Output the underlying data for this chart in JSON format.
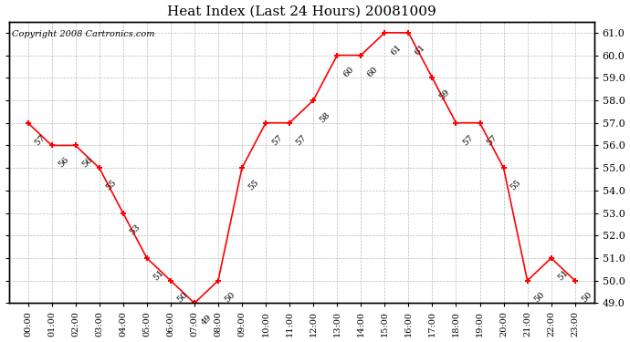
{
  "title": "Heat Index (Last 24 Hours) 20081009",
  "copyright": "Copyright 2008 Cartronics.com",
  "times": [
    "00:00",
    "01:00",
    "02:00",
    "03:00",
    "04:00",
    "05:00",
    "06:00",
    "07:00",
    "08:00",
    "09:00",
    "10:00",
    "11:00",
    "12:00",
    "13:00",
    "14:00",
    "15:00",
    "16:00",
    "17:00",
    "18:00",
    "19:00",
    "20:00",
    "21:00",
    "22:00",
    "23:00"
  ],
  "values": [
    57,
    56,
    56,
    55,
    53,
    51,
    50,
    49,
    50,
    55,
    57,
    57,
    58,
    60,
    60,
    61,
    61,
    59,
    57,
    57,
    55,
    50,
    51,
    50
  ],
  "ylim": [
    49.0,
    61.5
  ],
  "yticks": [
    49.0,
    50.0,
    51.0,
    52.0,
    53.0,
    54.0,
    55.0,
    56.0,
    57.0,
    58.0,
    59.0,
    60.0,
    61.0
  ],
  "line_color": "red",
  "marker_color": "red",
  "bg_color": "white",
  "grid_color": "#bbbbbb",
  "title_fontsize": 11,
  "copyright_fontsize": 7,
  "label_fontsize": 7,
  "tick_fontsize": 7,
  "figwidth": 6.9,
  "figheight": 3.75
}
